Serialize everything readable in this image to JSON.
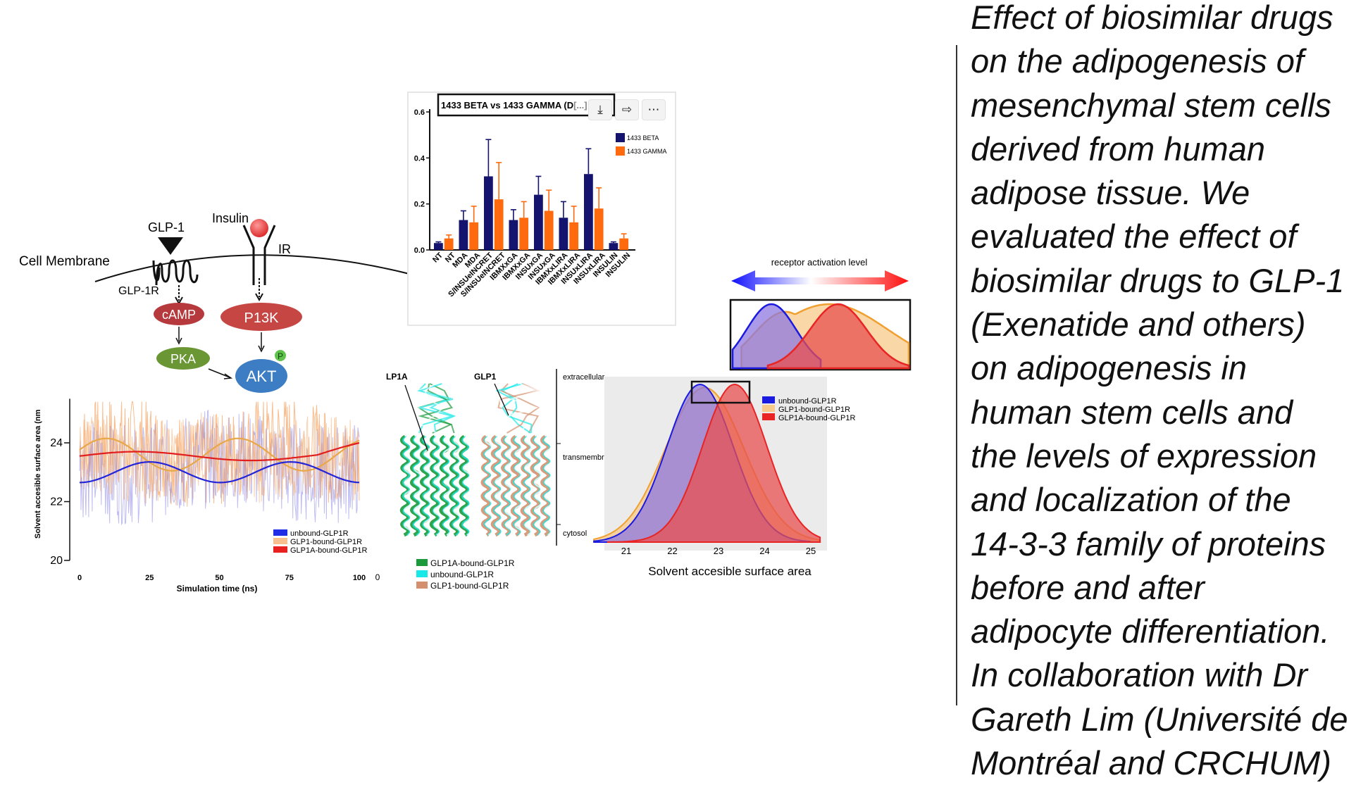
{
  "caption_lines": [
    "Effect of biosimilar drugs",
    "on the adipogenesis of",
    "mesenchymal stem cells",
    "derived from human",
    "adipose tissue. We",
    "evaluated the effect of",
    "biosimilar drugs to GLP-1",
    "(Exenatide and others)",
    "on adipogenesis in",
    "human stem cells and",
    "the levels of expression",
    "and localization of the",
    "14-3-3 family of proteins",
    "before and after",
    "adipocyte differentiation.",
    "In collaboration with Dr",
    "Gareth Lim (Université de",
    "Montréal and CRCHUM)"
  ],
  "pathway": {
    "membrane_label": "Cell Membrane",
    "ligand_glp1": "GLP-1",
    "ligand_insulin": "Insulin",
    "receptor_glp1r": "GLP-1R",
    "receptor_ir": "IR",
    "node_camp": "cAMP",
    "node_pka": "PKA",
    "node_p13k": "P13K",
    "node_akt": "AKT",
    "node_p": "P"
  },
  "bar_chart": {
    "title": "1433 BETA vs 1433 GAMMA (D",
    "title_cut": "[...]",
    "buttons": {
      "download": "download-icon",
      "share": "share-icon",
      "more": "more-icon"
    },
    "chart_data": {
      "type": "bar",
      "categories": [
        "NT",
        "MDA",
        "S/INSUeINCRET",
        "IBMXxGA",
        "INSUxGA",
        "IBMXxLIRA",
        "INSUxLIRA",
        "INSULIN"
      ],
      "tick_labels": [
        "NT",
        "NT",
        "MDA",
        "MDA",
        "S/INSUeINCRET",
        "S/INSUeINCRET",
        "IBMXxGA",
        "IBMXxGA",
        "INSUxGA",
        "INSUxGA",
        "IBMXxLIRA",
        "IBMXxLIRA",
        "INSUxLIRA",
        "INSUxLIRA",
        "INSULIN",
        "INSULIN"
      ],
      "series": [
        {
          "name": "1433 BETA",
          "color": "#14146e",
          "values": [
            0.03,
            0.13,
            0.32,
            0.13,
            0.24,
            0.14,
            0.33,
            0.03
          ],
          "errors": [
            0.005,
            0.04,
            0.16,
            0.045,
            0.08,
            0.07,
            0.11,
            0.005
          ]
        },
        {
          "name": "1433 GAMMA",
          "color": "#ff6a0e",
          "values": [
            0.05,
            0.12,
            0.22,
            0.14,
            0.17,
            0.12,
            0.18,
            0.05
          ],
          "errors": [
            0.015,
            0.07,
            0.16,
            0.07,
            0.09,
            0.07,
            0.09,
            0.02
          ]
        }
      ],
      "ylim": [
        0,
        0.6
      ],
      "yticks": [
        "0.0",
        "0.2",
        "0.4",
        "0.6"
      ],
      "legend": "top-right"
    }
  },
  "sasa_timeseries": {
    "ylabel": "Solvent accesible surface area (nm",
    "xlabel": "Simulation time (ns)",
    "yticks": [
      "20",
      "22",
      "24"
    ],
    "xticks": [
      "0",
      "25",
      "50",
      "75",
      "100"
    ],
    "x_extra_tick": "0",
    "legend": [
      {
        "label": "unbound-GLP1R",
        "color": "#1f2ee6"
      },
      {
        "label": "GLP1-bound-GLP1R",
        "color": "#f9c08f"
      },
      {
        "label": "GLP1A-bound-GLP1R",
        "color": "#e82020"
      }
    ]
  },
  "structures": {
    "label_left": "LP1A",
    "label_right": "GLP1",
    "regions": [
      "extracellular",
      "transmembrane",
      "cytosol"
    ],
    "legend": [
      {
        "label": "GLP1A-bound-GLP1R",
        "color": "#1a9a3a"
      },
      {
        "label": "unbound-GLP1R",
        "color": "#19e8e8"
      },
      {
        "label": "GLP1-bound-GLP1R",
        "color": "#d4906e"
      }
    ]
  },
  "activation": {
    "label": "receptor activation level"
  },
  "density": {
    "xlabel": "Solvent accesible surface area",
    "xticks": [
      "21",
      "22",
      "23",
      "24",
      "25"
    ],
    "legend": [
      {
        "label": "unbound-GLP1R",
        "color": "#1a1ae0"
      },
      {
        "label": "GLP1-bound-GLP1R",
        "color": "#f7c98a"
      },
      {
        "label": "GLP1A-bound-GLP1R",
        "color": "#e82424"
      }
    ]
  }
}
